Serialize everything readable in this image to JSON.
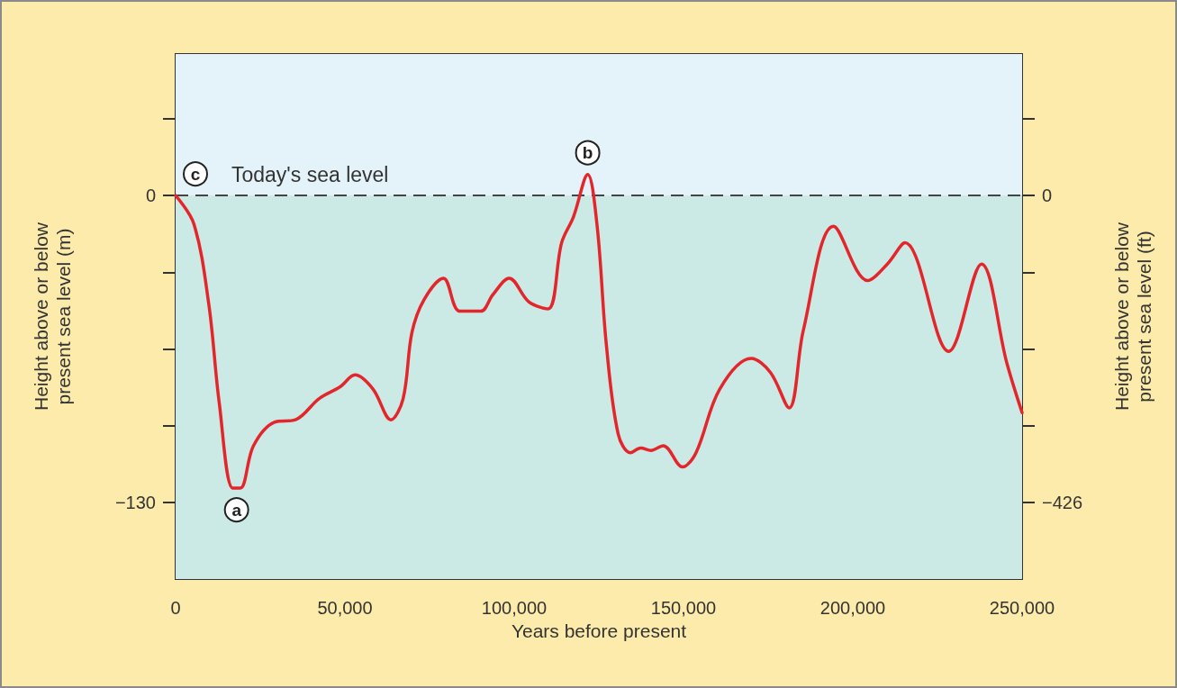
{
  "chart_data": {
    "type": "line",
    "xlabel": "Years before present",
    "ylabel": "Height above or below present sea level (m)",
    "y2label": "Height above or below present sea level (ft)",
    "xlim": [
      0,
      250000
    ],
    "xticks": [
      0,
      {
        "value": 50000,
        "label": "50,000"
      },
      {
        "value": 100000,
        "label": "100,000"
      },
      {
        "value": 150000,
        "label": "150,000"
      },
      {
        "value": 200000,
        "label": "200,000"
      },
      {
        "value": 250000,
        "label": "250,000"
      }
    ],
    "ylim": [
      -162.5,
      60
    ],
    "yticks": [
      {
        "value": 32.5,
        "label": null
      },
      0,
      {
        "value": -32.5,
        "label": null
      },
      {
        "value": -65,
        "label": null
      },
      {
        "value": -97.5,
        "label": null
      },
      {
        "value": -130,
        "label": "−130"
      }
    ],
    "y2lim": [
      -532.5,
      196.6
    ],
    "y2ticks": [
      {
        "value": 106.5,
        "label": null
      },
      0,
      {
        "value": -106.5,
        "label": null
      },
      {
        "value": -213,
        "label": null
      },
      {
        "value": -319.5,
        "label": null
      },
      {
        "value": -426,
        "label": "−426"
      }
    ],
    "series": [
      {
        "color": "#e3262b",
        "x": [
          0,
          5400,
          9800,
          12900,
          16900,
          19100,
          23000,
          29200,
          35400,
          42400,
          48600,
          53000,
          58300,
          63600,
          67200,
          69800,
          73400,
          79100,
          83900,
          90100,
          93700,
          98500,
          104300,
          110000,
          114000,
          117500,
          121700,
          124500,
          127200,
          130700,
          134300,
          137400,
          140400,
          144000,
          149700,
          153700,
          160700,
          170000,
          175700,
          181200,
          185400,
          194300,
          204400,
          210200,
          215400,
          228300,
          238000,
          245500,
          250000
        ],
        "values": [
          0,
          -12,
          -46,
          -88,
          -124,
          -124,
          -106,
          -96,
          -95,
          -86,
          -81,
          -76,
          -82,
          -95,
          -86,
          -58,
          -44,
          -35,
          -49,
          -49,
          -42,
          -35,
          -45,
          -48,
          -20,
          -9,
          9,
          -13,
          -63,
          -101,
          -109,
          -107,
          -108,
          -106,
          -115,
          -109,
          -82,
          -69,
          -75,
          -90,
          -57,
          -13,
          -36,
          -29,
          -20,
          -66,
          -29,
          -71,
          -92
        ]
      }
    ],
    "ref_lines": [
      {
        "axis": "y",
        "value": 0,
        "label": "Today's sea level",
        "color": "#444444",
        "line_style": "dashed"
      }
    ],
    "bands": [
      {
        "axis": "y",
        "from": 0,
        "to": 60,
        "color": "#e3f3f9"
      },
      {
        "axis": "y",
        "from": -162.5,
        "to": 0,
        "color": "#cbeae5"
      }
    ],
    "annotations": [
      {
        "text": "a",
        "x": 18000,
        "y": -124
      },
      {
        "text": "b",
        "x": 121700,
        "y": 9
      },
      {
        "text": "c",
        "x": 0,
        "y": 0
      }
    ]
  }
}
